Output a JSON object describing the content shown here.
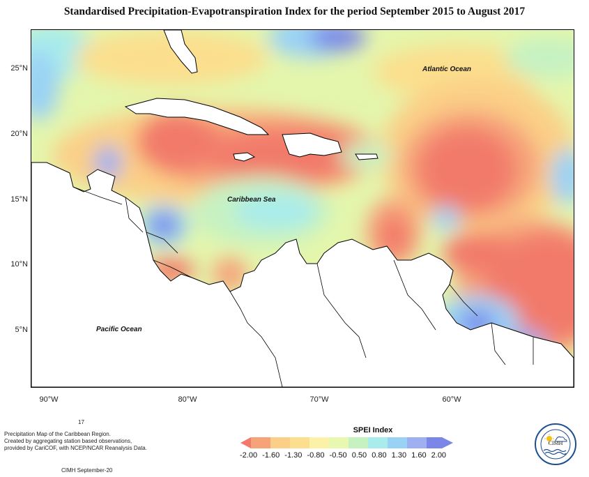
{
  "title": "Standardised Precipitation-Evapotranspiration Index for the period September 2015 to August 2017",
  "map": {
    "lat_labels": [
      "25°N",
      "20°N",
      "15°N",
      "10°N",
      "5°N"
    ],
    "lon_labels": [
      "90°W",
      "80°W",
      "70°W",
      "60°W"
    ],
    "ocean_labels": {
      "atlantic": "Atlantic Ocean",
      "caribbean": "Caribbean Sea",
      "pacific": "Pacific Ocean"
    }
  },
  "legend": {
    "title": "SPEI Index",
    "ticks": [
      "-2.00",
      "-1.60",
      "-1.30",
      "-0.80",
      "-0.50",
      "0.50",
      "0.80",
      "1.30",
      "1.60",
      "2.00"
    ],
    "colors": [
      "#f27a6a",
      "#f6a37a",
      "#fbcf87",
      "#fbf2a8",
      "#e8f8b0",
      "#c6f2c2",
      "#a8ecec",
      "#9ad2f6",
      "#9fb0f0",
      "#7a86e8"
    ]
  },
  "footer": {
    "number": "17",
    "description_line1": "Precipitation Map of the Caribbean Region.",
    "description_line2": "Created by aggregating station based observations,",
    "description_line3": "provided by CariCOF, with NCEP/NCAR Reanalysis Data.",
    "credit": "CIMH September-20"
  },
  "logo": {
    "text": "CIMH"
  }
}
